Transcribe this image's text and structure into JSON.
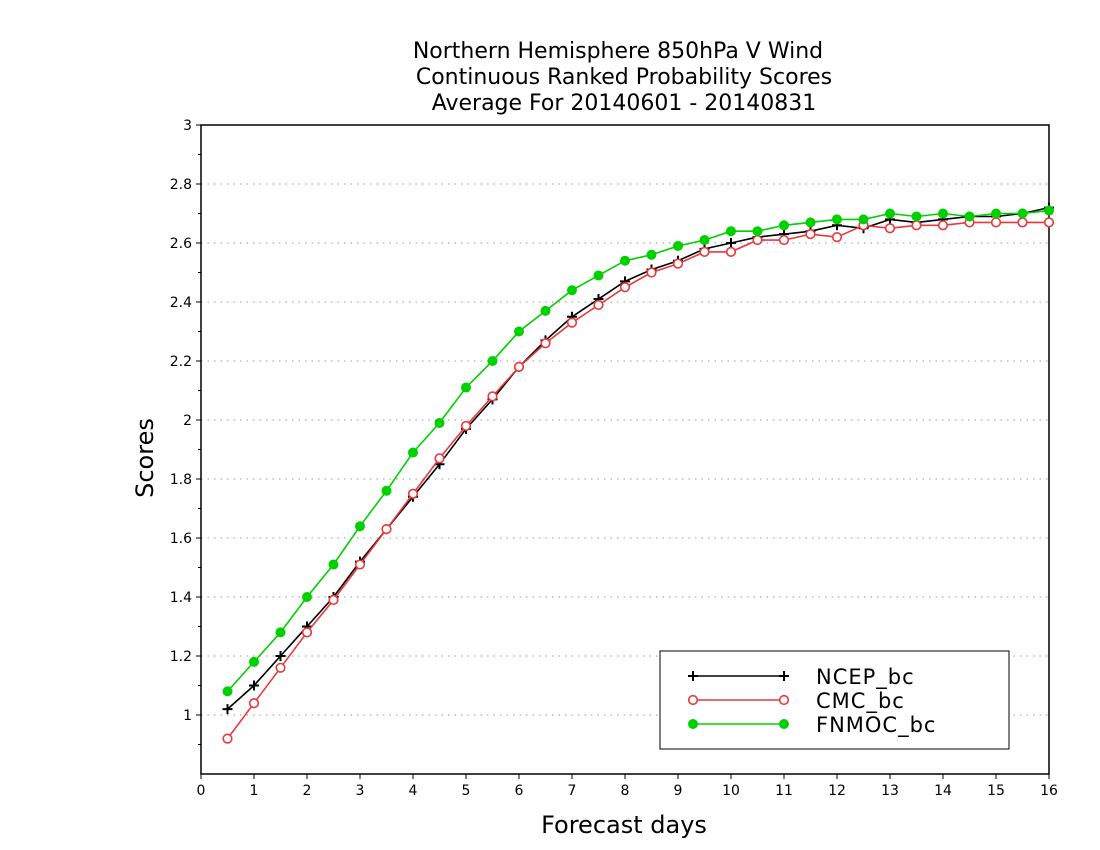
{
  "chart_data": {
    "type": "line",
    "title_lines": [
      "Northern Hemisphere 850hPa V Wind",
      "Continuous Ranked Probability Scores",
      "Average For 20140601 - 20140831"
    ],
    "xlabel": "Forecast days",
    "ylabel": "Scores",
    "xlim": [
      0,
      16
    ],
    "ylim": [
      0.8,
      3.0
    ],
    "x_ticks": [
      "0",
      "1",
      "2",
      "3",
      "4",
      "5",
      "6",
      "7",
      "8",
      "9",
      "10",
      "11",
      "12",
      "13",
      "14",
      "15",
      "16"
    ],
    "y_ticks": [
      "1",
      "1.2",
      "1.4",
      "1.6",
      "1.8",
      "2",
      "2.2",
      "2.4",
      "2.6",
      "2.8",
      "3"
    ],
    "y_tick_values": [
      1,
      1.2,
      1.4,
      1.6,
      1.8,
      2.0,
      2.2,
      2.4,
      2.6,
      2.8,
      3.0
    ],
    "grid": "horizontal-dotted",
    "legend_position": "bottom-right",
    "x": [
      0.5,
      1,
      1.5,
      2,
      2.5,
      3,
      3.5,
      4,
      4.5,
      5,
      5.5,
      6,
      6.5,
      7,
      7.5,
      8,
      8.5,
      9,
      9.5,
      10,
      10.5,
      11,
      11.5,
      12,
      12.5,
      13,
      13.5,
      14,
      14.5,
      15,
      15.5,
      16
    ],
    "series": [
      {
        "name": "NCEP_bc",
        "color": "#000000",
        "marker": "plus",
        "values": [
          1.02,
          1.1,
          1.2,
          1.3,
          1.4,
          1.52,
          1.63,
          1.74,
          1.85,
          1.97,
          2.07,
          2.18,
          2.27,
          2.35,
          2.41,
          2.47,
          2.51,
          2.54,
          2.58,
          2.6,
          2.62,
          2.63,
          2.64,
          2.66,
          2.65,
          2.68,
          2.67,
          2.68,
          2.69,
          2.69,
          2.7,
          2.72
        ]
      },
      {
        "name": "CMC_bc",
        "color": "#e8383c",
        "marker": "open-circle",
        "values": [
          0.92,
          1.04,
          1.16,
          1.28,
          1.39,
          1.51,
          1.63,
          1.75,
          1.87,
          1.98,
          2.08,
          2.18,
          2.26,
          2.33,
          2.39,
          2.45,
          2.5,
          2.53,
          2.57,
          2.57,
          2.61,
          2.61,
          2.63,
          2.62,
          2.66,
          2.65,
          2.66,
          2.66,
          2.67,
          2.67,
          2.67,
          2.67
        ]
      },
      {
        "name": "FNMOC_bc",
        "color": "#00d000",
        "marker": "filled-circle",
        "values": [
          1.08,
          1.18,
          1.28,
          1.4,
          1.51,
          1.64,
          1.76,
          1.89,
          1.99,
          2.11,
          2.2,
          2.3,
          2.37,
          2.44,
          2.49,
          2.54,
          2.56,
          2.59,
          2.61,
          2.64,
          2.64,
          2.66,
          2.67,
          2.68,
          2.68,
          2.7,
          2.69,
          2.7,
          2.69,
          2.7,
          2.7,
          2.71
        ]
      }
    ]
  }
}
